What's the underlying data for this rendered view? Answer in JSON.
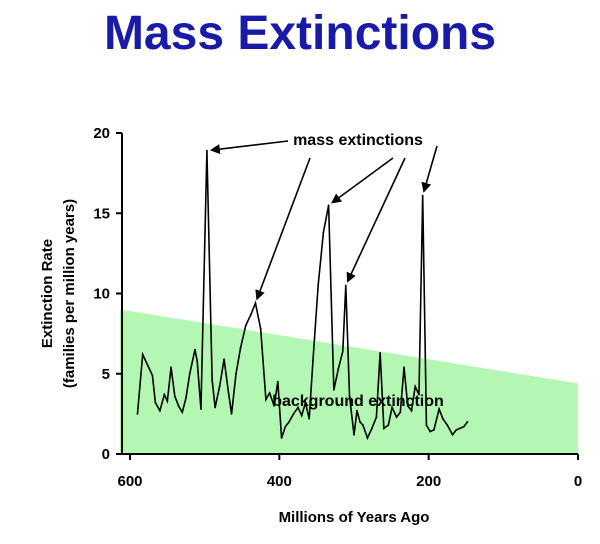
{
  "title": "Mass Extinctions",
  "chart_data": {
    "type": "line",
    "title": "Mass Extinctions",
    "xlabel": "Millions of Years Ago",
    "ylabel": "Extinction Rate",
    "ylabel_sub": "(families per million years)",
    "xlim": [
      600,
      0
    ],
    "ylim": [
      0,
      20
    ],
    "x_ticks": [
      "600",
      "400",
      "200",
      "0"
    ],
    "x_tick_values": [
      600,
      400,
      200,
      0
    ],
    "y_ticks": [
      "0",
      "5",
      "10",
      "15",
      "20"
    ],
    "y_tick_values": [
      0,
      5,
      10,
      15,
      20
    ],
    "grid": false,
    "background_band": {
      "label": "background extinction",
      "start": [
        600,
        9
      ],
      "end": [
        0,
        4.4
      ],
      "color": "#b3f7b3"
    },
    "series": [
      {
        "color": "#000000",
        "points": [
          [
            590,
            2.5
          ],
          [
            583,
            6.2
          ],
          [
            577,
            5.6
          ],
          [
            570,
            4.9
          ],
          [
            566,
            3.2
          ],
          [
            560,
            2.7
          ],
          [
            554,
            3.7
          ],
          [
            550,
            3.3
          ],
          [
            545,
            5.4
          ],
          [
            540,
            3.6
          ],
          [
            535,
            3.0
          ],
          [
            530,
            2.6
          ],
          [
            525,
            3.5
          ],
          [
            520,
            5.0
          ],
          [
            513,
            6.5
          ],
          [
            510,
            5.8
          ],
          [
            505,
            2.8
          ],
          [
            497,
            18.9
          ],
          [
            490,
            4.6
          ],
          [
            486,
            2.9
          ],
          [
            480,
            4.2
          ],
          [
            474,
            5.9
          ],
          [
            468,
            3.8
          ],
          [
            464,
            2.5
          ],
          [
            458,
            5.0
          ],
          [
            452,
            6.6
          ],
          [
            445,
            8.0
          ],
          [
            438,
            8.7
          ],
          [
            432,
            9.4
          ],
          [
            425,
            7.8
          ],
          [
            418,
            3.4
          ],
          [
            413,
            3.8
          ],
          [
            407,
            3.0
          ],
          [
            402,
            4.5
          ],
          [
            397,
            1.0
          ],
          [
            392,
            1.7
          ],
          [
            387,
            2.0
          ],
          [
            381,
            2.5
          ],
          [
            375,
            2.9
          ],
          [
            370,
            2.4
          ],
          [
            365,
            3.2
          ],
          [
            360,
            2.2
          ],
          [
            355,
            5.8
          ],
          [
            348,
            10.5
          ],
          [
            341,
            13.8
          ],
          [
            334,
            15.5
          ],
          [
            327,
            4.0
          ],
          [
            321,
            5.3
          ],
          [
            315,
            6.4
          ],
          [
            311,
            10.5
          ],
          [
            306,
            3.6
          ],
          [
            300,
            1.2
          ],
          [
            296,
            2.7
          ],
          [
            292,
            2.0
          ],
          [
            288,
            1.8
          ],
          [
            282,
            1.0
          ],
          [
            276,
            1.6
          ],
          [
            270,
            2.3
          ],
          [
            265,
            6.3
          ],
          [
            260,
            1.6
          ],
          [
            254,
            1.8
          ],
          [
            249,
            2.9
          ],
          [
            243,
            2.3
          ],
          [
            238,
            2.6
          ],
          [
            233,
            5.4
          ],
          [
            228,
            3.0
          ],
          [
            223,
            2.7
          ],
          [
            218,
            4.2
          ],
          [
            213,
            3.7
          ],
          [
            208,
            16.1
          ],
          [
            203,
            1.8
          ],
          [
            198,
            1.4
          ],
          [
            193,
            1.5
          ],
          [
            186,
            2.8
          ],
          [
            181,
            2.2
          ],
          [
            175,
            1.8
          ],
          [
            168,
            1.2
          ],
          [
            163,
            1.5
          ],
          [
            158,
            1.6
          ],
          [
            153,
            1.7
          ],
          [
            148,
            2.0
          ]
        ]
      }
    ],
    "annotations": [
      {
        "text": "mass extinctions"
      },
      {
        "text": "background extinction"
      }
    ],
    "arrow_targets": [
      [
        497,
        18.9
      ],
      [
        432,
        9.4
      ],
      [
        334,
        15.5
      ],
      [
        311,
        10.5
      ],
      [
        208,
        16.1
      ]
    ]
  }
}
